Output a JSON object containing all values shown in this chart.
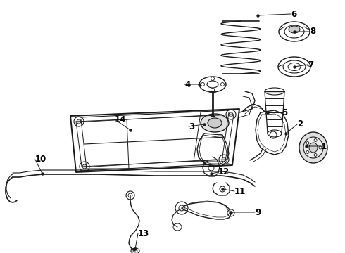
{
  "bg_color": "#ffffff",
  "line_color": "#1a1a1a",
  "fig_width": 4.9,
  "fig_height": 3.6,
  "dpi": 100,
  "font_size_labels": 8.5
}
